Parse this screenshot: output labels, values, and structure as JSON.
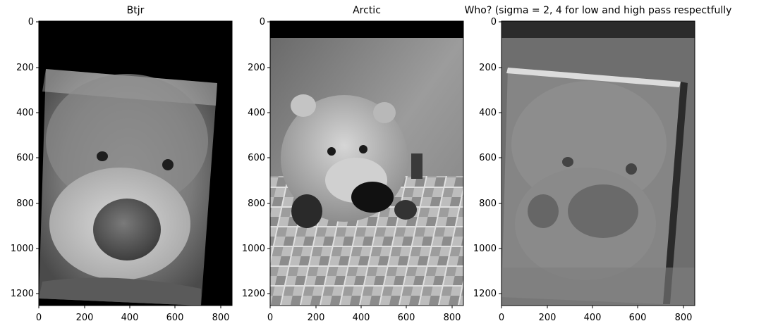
{
  "panels": [
    {
      "title": "Btjr",
      "image": "grayscale photo of a plush teddy bear close-up, rotated on black background",
      "x_ticks": [
        "0",
        "200",
        "400",
        "600",
        "800"
      ],
      "y_ticks": [
        "0",
        "200",
        "400",
        "600",
        "800",
        "1000",
        "1200"
      ]
    },
    {
      "title": "Arctic",
      "image": "grayscale photo of a plush polar bear lying on a checkered blanket",
      "x_ticks": [
        "0",
        "200",
        "400",
        "600",
        "800"
      ],
      "y_ticks": [
        "0",
        "200",
        "400",
        "600",
        "800",
        "1000",
        "1200"
      ]
    },
    {
      "title": "Who? (sigma = 2, 4 for low and high pass respectfully",
      "image": "hybrid image blending the two bear photos",
      "x_ticks": [
        "0",
        "200",
        "400",
        "600",
        "800"
      ],
      "y_ticks": [
        "0",
        "200",
        "400",
        "600",
        "800",
        "1000",
        "1200"
      ]
    }
  ],
  "colors": {
    "axis": "#000000",
    "background": "#ffffff"
  }
}
